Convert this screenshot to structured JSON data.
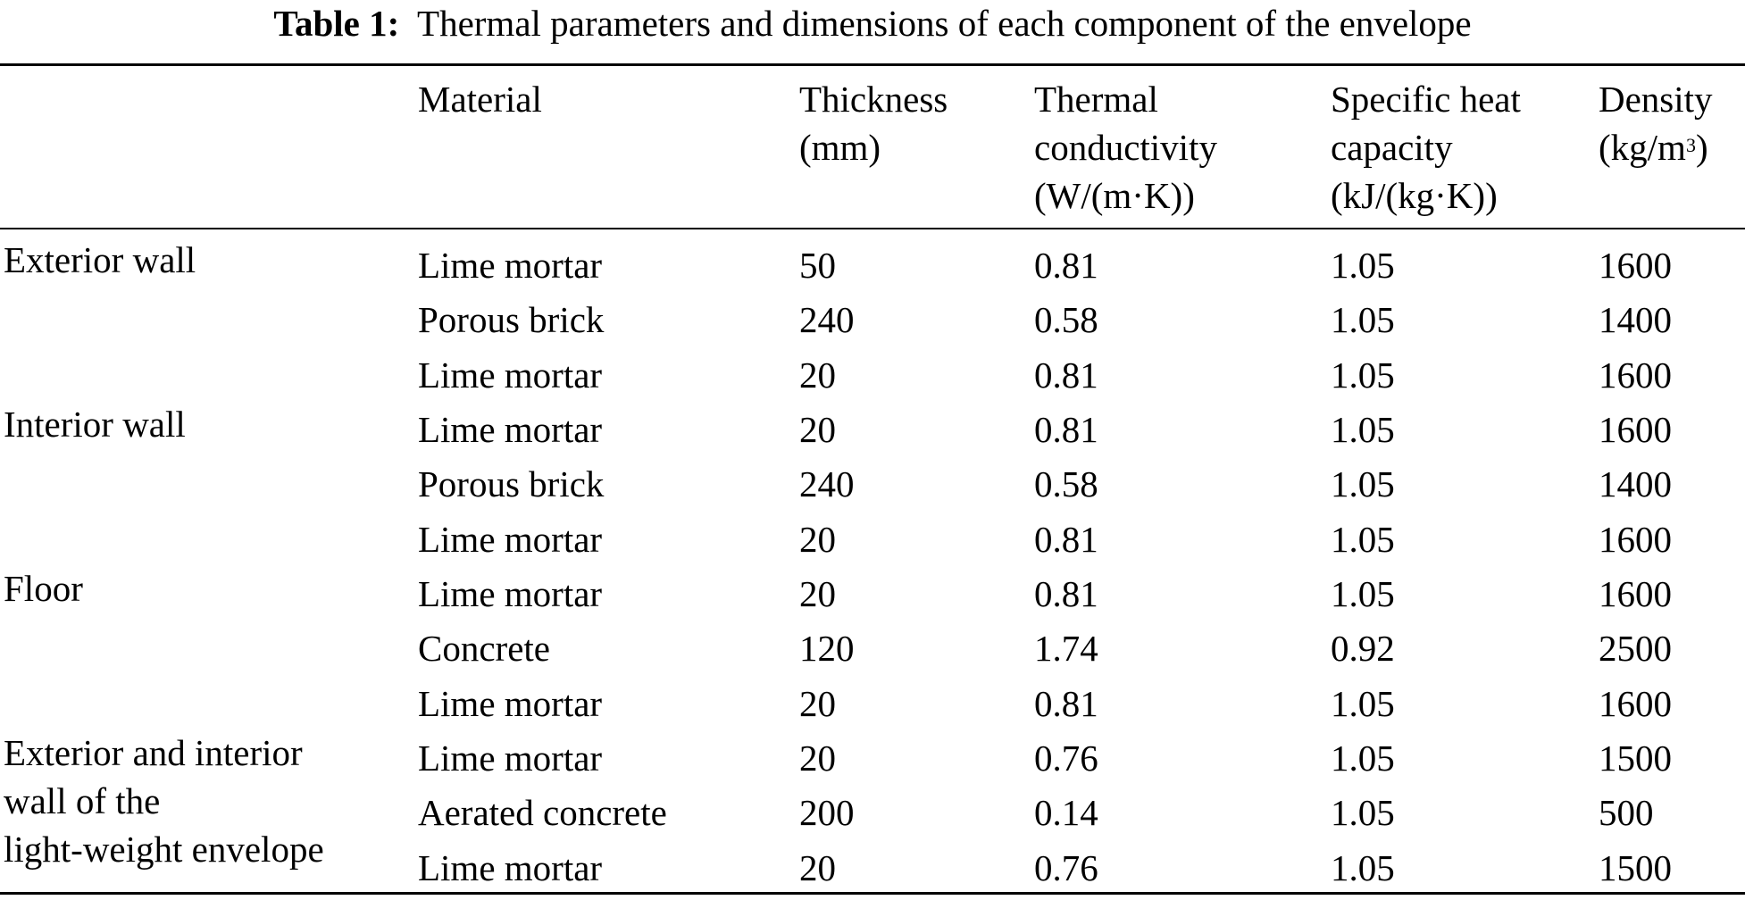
{
  "caption": {
    "label": "Table 1:",
    "text": "Thermal parameters and dimensions of each component of the envelope"
  },
  "headers": {
    "material": [
      "Material"
    ],
    "thickness": [
      "Thickness",
      "(mm)"
    ],
    "conductivity": [
      "Thermal",
      "conductivity",
      "(W/(m·K))"
    ],
    "heat_capacity": [
      "Specific heat",
      "capacity",
      "(kJ/(kg·K))"
    ],
    "density_label": "Density",
    "density_unit": "(kg/m",
    "density_exp": "3",
    "density_close": ")"
  },
  "components": [
    {
      "lines": [
        "Exterior wall"
      ]
    },
    {
      "lines": [
        "Interior wall"
      ]
    },
    {
      "lines": [
        "Floor"
      ]
    },
    {
      "lines": [
        "Exterior and interior",
        "wall of the",
        "light-weight envelope"
      ]
    }
  ],
  "rows": [
    {
      "material": "Lime mortar",
      "thickness": "50",
      "conductivity": "0.81",
      "heat_capacity": "1.05",
      "density": "1600"
    },
    {
      "material": "Porous brick",
      "thickness": "240",
      "conductivity": "0.58",
      "heat_capacity": "1.05",
      "density": "1400"
    },
    {
      "material": "Lime mortar",
      "thickness": "20",
      "conductivity": "0.81",
      "heat_capacity": "1.05",
      "density": "1600"
    },
    {
      "material": "Lime mortar",
      "thickness": "20",
      "conductivity": "0.81",
      "heat_capacity": "1.05",
      "density": "1600"
    },
    {
      "material": "Porous brick",
      "thickness": "240",
      "conductivity": "0.58",
      "heat_capacity": "1.05",
      "density": "1400"
    },
    {
      "material": "Lime mortar",
      "thickness": "20",
      "conductivity": "0.81",
      "heat_capacity": "1.05",
      "density": "1600"
    },
    {
      "material": "Lime mortar",
      "thickness": "20",
      "conductivity": "0.81",
      "heat_capacity": "1.05",
      "density": "1600"
    },
    {
      "material": "Concrete",
      "thickness": "120",
      "conductivity": "1.74",
      "heat_capacity": "0.92",
      "density": "2500"
    },
    {
      "material": "Lime mortar",
      "thickness": "20",
      "conductivity": "0.81",
      "heat_capacity": "1.05",
      "density": "1600"
    },
    {
      "material": "Lime mortar",
      "thickness": "20",
      "conductivity": "0.76",
      "heat_capacity": "1.05",
      "density": "1500"
    },
    {
      "material": "Aerated concrete",
      "thickness": "200",
      "conductivity": "0.14",
      "heat_capacity": "1.05",
      "density": "500"
    },
    {
      "material": "Lime mortar",
      "thickness": "20",
      "conductivity": "0.76",
      "heat_capacity": "1.05",
      "density": "1500"
    }
  ]
}
